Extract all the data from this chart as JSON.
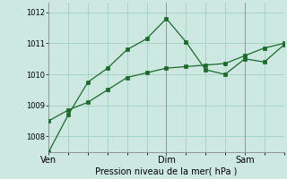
{
  "line1_y": [
    1007.5,
    1008.7,
    1009.75,
    1010.2,
    1010.8,
    1011.15,
    1011.8,
    1011.05,
    1010.15,
    1010.0,
    1010.5,
    1010.4,
    1010.95
  ],
  "line2_y": [
    1008.5,
    1008.85,
    1009.1,
    1009.5,
    1009.9,
    1010.05,
    1010.2,
    1010.25,
    1010.3,
    1010.35,
    1010.6,
    1010.85,
    1011.0
  ],
  "line_color": "#1a6b2a",
  "bg_color": "#cce8e0",
  "grid_color": "#99ccbb",
  "xlabel": "Pression niveau de la mer( hPa )",
  "ylim": [
    1007.5,
    1012.3
  ],
  "yticks": [
    1008,
    1009,
    1010,
    1011,
    1012
  ],
  "xmax": 12,
  "ven_x": 0,
  "dim_x": 6,
  "sam_x": 10,
  "xtick_positions": [
    0,
    6,
    10
  ],
  "xtick_labels": [
    "Ven",
    "Dim",
    "Sam"
  ],
  "ylabel_fontsize": 6,
  "xlabel_fontsize": 7
}
